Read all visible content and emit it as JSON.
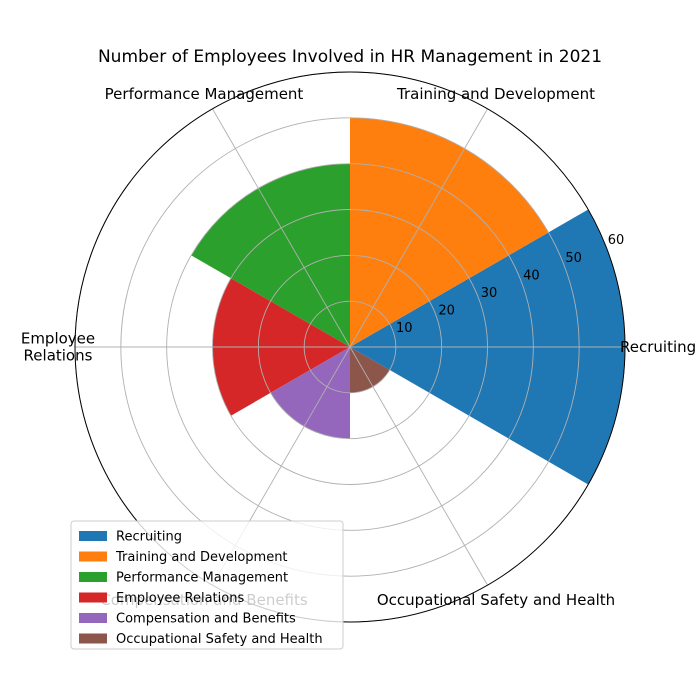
{
  "chart_data": {
    "type": "polar-bar",
    "title": "Number of Employees Involved in HR Management in 2021",
    "categories": [
      "Recruiting",
      "Training and Development",
      "Performance Management",
      "Employee Relations",
      "Compensation and Benefits",
      "Occupational Safety and Health"
    ],
    "category_labels": [
      [
        "Recruiting"
      ],
      [
        "Training and Development"
      ],
      [
        "Performance Management"
      ],
      [
        "Employee",
        "Relations"
      ],
      [
        "Compensation and Benefits"
      ],
      [
        "Occupational Safety and Health"
      ]
    ],
    "values": [
      60,
      50,
      40,
      30,
      20,
      10
    ],
    "colors": [
      "#1f77b4",
      "#ff7f0e",
      "#2ca02c",
      "#d62728",
      "#9467bd",
      "#8c564b"
    ],
    "radial_ticks": [
      10,
      20,
      30,
      40,
      50,
      60
    ],
    "rlim": [
      0,
      60
    ],
    "grid": true,
    "legend": "lower-left"
  }
}
